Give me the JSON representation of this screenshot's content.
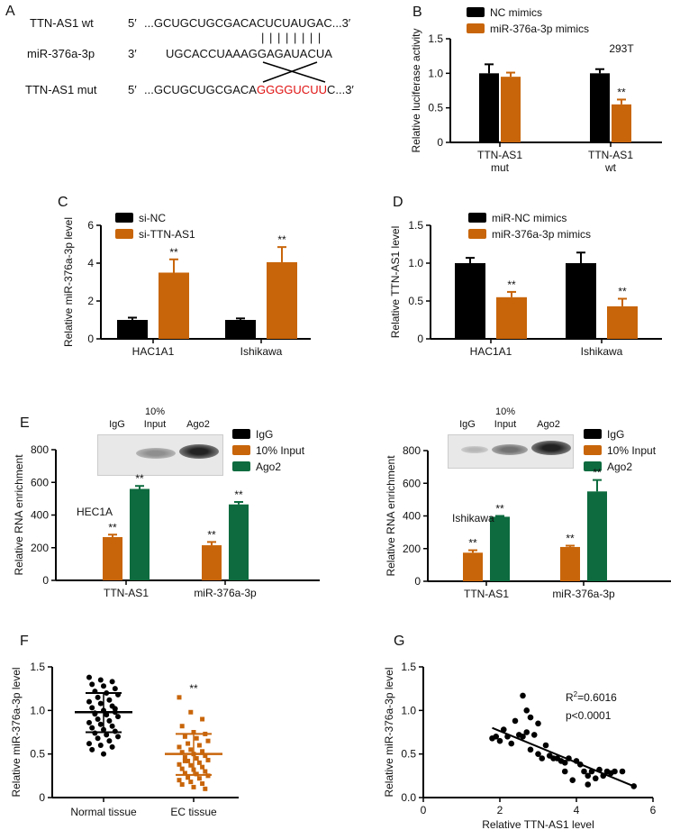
{
  "panel_a": {
    "label": "A",
    "rows": [
      {
        "name": "TTN-AS1 wt",
        "end": "5′",
        "seq": "...GCUGCUGCGACACUCUAUGAC...3′"
      },
      {
        "name": "miR-376a-3p",
        "end": "3′",
        "seq": "UGCACCUAAAGGAGAUACUA"
      },
      {
        "name": "TTN-AS1 mut",
        "end": "5′",
        "seq_prefix": "...GCUGCUGCGACA",
        "seq_mut": "GGGGUCUU",
        "seq_suffix": "C...3′"
      }
    ],
    "pairing": "| | | | | | | |"
  },
  "blot_lanes": [
    "IgG",
    "10%\nInput",
    "Ago2"
  ],
  "colors": {
    "black": "#000000",
    "orange": "#c8650a",
    "green": "#0d6b3f",
    "red": "#e01010"
  },
  "chart_data": [
    {
      "id": "B",
      "type": "bar",
      "label": "B",
      "ylabel": "Relative luciferase activity",
      "ylim": [
        0,
        1.5
      ],
      "yticks": [
        "0",
        "0.5",
        "1.0",
        "1.5"
      ],
      "categories": [
        "TTN-AS1\nmut",
        "TTN-AS1\nwt"
      ],
      "annotation": "293T",
      "series": [
        {
          "name": "NC mimics",
          "color": "#000000",
          "values": [
            1.0,
            1.0
          ],
          "err": [
            0.13,
            0.06
          ],
          "sig": [
            "",
            ""
          ]
        },
        {
          "name": "miR-376a-3p mimics",
          "color": "#c8650a",
          "values": [
            0.95,
            0.55
          ],
          "err": [
            0.06,
            0.07
          ],
          "sig": [
            "",
            "**"
          ]
        }
      ]
    },
    {
      "id": "C",
      "type": "bar",
      "label": "C",
      "ylabel": "Relative miR-376a-3p level",
      "ylim": [
        0,
        6
      ],
      "yticks": [
        "0",
        "2",
        "4",
        "6"
      ],
      "categories": [
        "HAC1A1",
        "Ishikawa"
      ],
      "series": [
        {
          "name": "si-NC",
          "color": "#000000",
          "values": [
            1.0,
            1.0
          ],
          "err": [
            0.12,
            0.08
          ],
          "sig": [
            "",
            ""
          ]
        },
        {
          "name": "si-TTN-AS1",
          "color": "#c8650a",
          "values": [
            3.5,
            4.05
          ],
          "err": [
            0.7,
            0.8
          ],
          "sig": [
            "**",
            "**"
          ]
        }
      ]
    },
    {
      "id": "D",
      "type": "bar",
      "label": "D",
      "ylabel": "Relative TTN-AS1 level",
      "ylim": [
        0,
        1.5
      ],
      "yticks": [
        "0",
        "0.5",
        "1.0",
        "1.5"
      ],
      "categories": [
        "HAC1A1",
        "Ishikawa"
      ],
      "series": [
        {
          "name": "miR-NC mimics",
          "color": "#000000",
          "values": [
            1.0,
            1.0
          ],
          "err": [
            0.07,
            0.14
          ],
          "sig": [
            "",
            ""
          ]
        },
        {
          "name": "miR-376a-3p mimics",
          "color": "#c8650a",
          "values": [
            0.55,
            0.43
          ],
          "err": [
            0.07,
            0.1
          ],
          "sig": [
            "**",
            "**"
          ]
        }
      ]
    },
    {
      "id": "E1",
      "type": "bar",
      "label": "E",
      "ylabel": "Relative RNA enrichment",
      "ylim": [
        0,
        800
      ],
      "yticks": [
        "0",
        "200",
        "400",
        "600",
        "800"
      ],
      "categories": [
        "TTN-AS1",
        "miR-376a-3p"
      ],
      "annotation": "HEC1A",
      "series": [
        {
          "name": "IgG",
          "color": "#000000",
          "values": [
            0,
            0
          ],
          "err": [
            0,
            0
          ],
          "sig": [
            "",
            ""
          ]
        },
        {
          "name": "10% Input",
          "color": "#c8650a",
          "values": [
            265,
            215
          ],
          "err": [
            15,
            20
          ],
          "sig": [
            "**",
            "**"
          ]
        },
        {
          "name": "Ago2",
          "color": "#0d6b3f",
          "values": [
            560,
            465
          ],
          "err": [
            18,
            15
          ],
          "sig": [
            "**",
            "**"
          ]
        }
      ]
    },
    {
      "id": "E2",
      "type": "bar",
      "label": "",
      "ylabel": "Relative RNA enrichment",
      "ylim": [
        0,
        800
      ],
      "yticks": [
        "0",
        "200",
        "400",
        "600",
        "800"
      ],
      "categories": [
        "TTN-AS1",
        "miR-376a-3p"
      ],
      "annotation": "Ishikawa",
      "series": [
        {
          "name": "IgG",
          "color": "#000000",
          "values": [
            0,
            0
          ],
          "err": [
            0,
            0
          ],
          "sig": [
            "",
            ""
          ]
        },
        {
          "name": "10% Input",
          "color": "#c8650a",
          "values": [
            175,
            210
          ],
          "err": [
            15,
            8
          ],
          "sig": [
            "**",
            "**"
          ]
        },
        {
          "name": "Ago2",
          "color": "#0d6b3f",
          "values": [
            395,
            550
          ],
          "err": [
            5,
            70
          ],
          "sig": [
            "**",
            "**"
          ]
        }
      ]
    },
    {
      "id": "F",
      "type": "scatter",
      "label": "F",
      "ylabel": "Relative miR-376a-3p level",
      "ylim": [
        0,
        1.5
      ],
      "yticks": [
        "0",
        "0.5",
        "1.0",
        "1.5"
      ],
      "categories": [
        "Normal tissue",
        "EC tissue"
      ],
      "groups": [
        {
          "name": "Normal tissue",
          "color": "#000000",
          "mean": 0.98,
          "sd": [
            0.75,
            1.2
          ],
          "sig": "",
          "values": [
            1.38,
            1.35,
            1.33,
            1.3,
            1.28,
            1.25,
            1.22,
            1.2,
            1.18,
            1.15,
            1.12,
            1.1,
            1.08,
            1.05,
            1.03,
            1.0,
            0.98,
            0.97,
            0.95,
            0.93,
            0.9,
            0.88,
            0.86,
            0.84,
            0.82,
            0.8,
            0.78,
            0.76,
            0.74,
            0.72,
            0.7,
            0.68,
            0.65,
            0.62,
            0.6,
            0.58,
            0.55,
            0.5,
            1.02,
            0.96
          ]
        },
        {
          "name": "EC tissue",
          "color": "#c8650a",
          "mean": 0.5,
          "sd": [
            0.26,
            0.73
          ],
          "sig": "**",
          "values": [
            1.15,
            0.98,
            0.9,
            0.82,
            0.75,
            0.73,
            0.7,
            0.68,
            0.65,
            0.62,
            0.6,
            0.58,
            0.55,
            0.53,
            0.52,
            0.5,
            0.48,
            0.46,
            0.45,
            0.43,
            0.42,
            0.4,
            0.38,
            0.37,
            0.35,
            0.33,
            0.32,
            0.3,
            0.28,
            0.27,
            0.25,
            0.23,
            0.22,
            0.2,
            0.18,
            0.16,
            0.15,
            0.12,
            0.1,
            0.42
          ]
        }
      ]
    },
    {
      "id": "G",
      "type": "scatter",
      "label": "G",
      "xlabel": "Relative TTN-AS1 level",
      "ylabel": "Relative miR-376a-3p level",
      "xlim": [
        0,
        6
      ],
      "ylim": [
        0,
        1.5
      ],
      "xticks": [
        "0",
        "2",
        "4",
        "6"
      ],
      "yticks": [
        "0.0",
        "0.5",
        "1.0",
        "1.5"
      ],
      "r2_label": "R",
      "r2_value": "=0.6016",
      "p_label": "p<0.0001",
      "fit": [
        [
          1.8,
          0.8
        ],
        [
          5.5,
          0.13
        ]
      ],
      "points": [
        [
          1.8,
          0.68
        ],
        [
          1.9,
          0.7
        ],
        [
          2.0,
          0.65
        ],
        [
          2.1,
          0.78
        ],
        [
          2.2,
          0.7
        ],
        [
          2.3,
          0.62
        ],
        [
          2.4,
          0.88
        ],
        [
          2.5,
          0.72
        ],
        [
          2.6,
          1.17
        ],
        [
          2.6,
          0.7
        ],
        [
          2.7,
          0.75
        ],
        [
          2.7,
          1.0
        ],
        [
          2.8,
          0.92
        ],
        [
          2.8,
          0.55
        ],
        [
          2.9,
          0.72
        ],
        [
          3.0,
          0.5
        ],
        [
          3.0,
          0.85
        ],
        [
          3.1,
          0.45
        ],
        [
          3.2,
          0.6
        ],
        [
          3.3,
          0.48
        ],
        [
          3.4,
          0.45
        ],
        [
          3.5,
          0.45
        ],
        [
          3.6,
          0.42
        ],
        [
          3.7,
          0.4
        ],
        [
          3.7,
          0.3
        ],
        [
          3.8,
          0.45
        ],
        [
          3.9,
          0.2
        ],
        [
          4.0,
          0.42
        ],
        [
          4.1,
          0.38
        ],
        [
          4.2,
          0.3
        ],
        [
          4.3,
          0.25
        ],
        [
          4.3,
          0.15
        ],
        [
          4.4,
          0.3
        ],
        [
          4.5,
          0.22
        ],
        [
          4.6,
          0.32
        ],
        [
          4.7,
          0.25
        ],
        [
          4.8,
          0.3
        ],
        [
          4.9,
          0.28
        ],
        [
          5.0,
          0.3
        ],
        [
          5.2,
          0.3
        ],
        [
          5.5,
          0.13
        ]
      ]
    }
  ]
}
